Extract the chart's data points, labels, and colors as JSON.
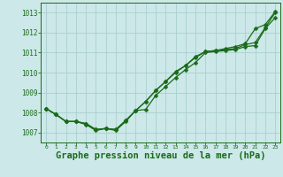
{
  "background_color": "#cce8e8",
  "grid_color": "#aacfcf",
  "line_color": "#1a6b1a",
  "xlabel": "Graphe pression niveau de la mer (hPa)",
  "xlabel_fontsize": 7.5,
  "ylim": [
    1006.5,
    1013.5
  ],
  "xlim": [
    -0.5,
    23.5
  ],
  "yticks": [
    1007,
    1008,
    1009,
    1010,
    1011,
    1012,
    1013
  ],
  "xticks": [
    0,
    1,
    2,
    3,
    4,
    5,
    6,
    7,
    8,
    9,
    10,
    11,
    12,
    13,
    14,
    15,
    16,
    17,
    18,
    19,
    20,
    21,
    22,
    23
  ],
  "series1": [
    1008.2,
    1007.9,
    1007.55,
    1007.55,
    1007.4,
    1007.1,
    1007.2,
    1007.1,
    1007.55,
    1008.1,
    1008.15,
    1008.85,
    1009.3,
    1009.75,
    1010.15,
    1010.5,
    1011.0,
    1011.05,
    1011.1,
    1011.15,
    1011.3,
    1011.35,
    1012.2,
    1012.75
  ],
  "series2": [
    1008.2,
    1007.9,
    1007.55,
    1007.55,
    1007.45,
    1007.15,
    1007.2,
    1007.15,
    1007.6,
    1008.1,
    1008.55,
    1009.1,
    1009.55,
    1010.0,
    1010.35,
    1010.75,
    1011.05,
    1011.1,
    1011.15,
    1011.2,
    1011.4,
    1011.5,
    1012.25,
    1013.0
  ],
  "series3": [
    1008.2,
    1007.9,
    1007.55,
    1007.55,
    1007.45,
    1007.15,
    1007.2,
    1007.15,
    1007.6,
    1008.1,
    1008.55,
    1009.1,
    1009.55,
    1010.05,
    1010.35,
    1010.8,
    1011.05,
    1011.1,
    1011.2,
    1011.3,
    1011.45,
    1012.2,
    1012.4,
    1013.05
  ]
}
